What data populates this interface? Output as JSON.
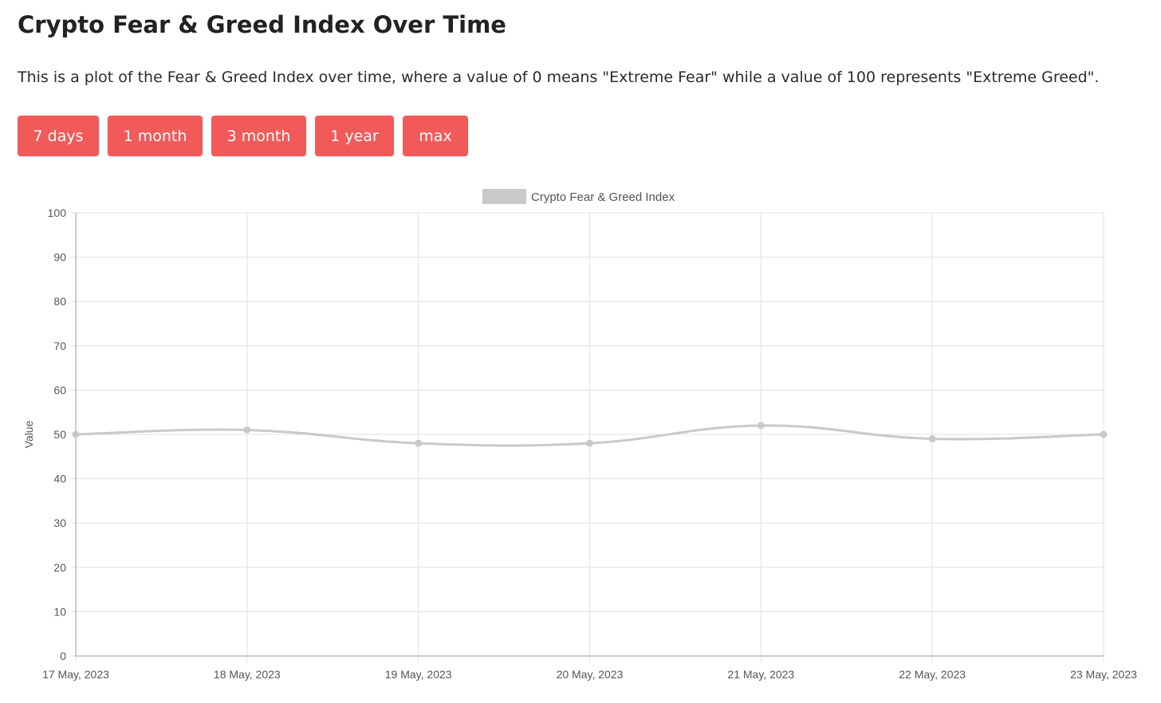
{
  "page": {
    "title": "Crypto Fear & Greed Index Over Time",
    "description": "This is a plot of the Fear & Greed Index over time, where a value of 0 means \"Extreme Fear\" while a value of 100 represents \"Extreme Greed\"."
  },
  "range_buttons": [
    {
      "label": "7 days"
    },
    {
      "label": "1 month"
    },
    {
      "label": "3 month"
    },
    {
      "label": "1 year"
    },
    {
      "label": "max"
    }
  ],
  "colors": {
    "button": "#f25a5a",
    "series": "#c9c9c9",
    "grid": "#e0e0e0"
  },
  "chart_data": {
    "type": "line",
    "categories": [
      "17 May, 2023",
      "18 May, 2023",
      "19 May, 2023",
      "20 May, 2023",
      "21 May, 2023",
      "22 May, 2023",
      "23 May, 2023"
    ],
    "series": [
      {
        "name": "Crypto Fear & Greed Index",
        "values": [
          50,
          51,
          48,
          48,
          52,
          49,
          50
        ]
      }
    ],
    "ylabel": "Value",
    "ylim": [
      0,
      100
    ],
    "yticks": [
      0,
      10,
      20,
      30,
      40,
      50,
      60,
      70,
      80,
      90,
      100
    ],
    "grid": true,
    "legend_position": "top-center",
    "smooth": true
  }
}
